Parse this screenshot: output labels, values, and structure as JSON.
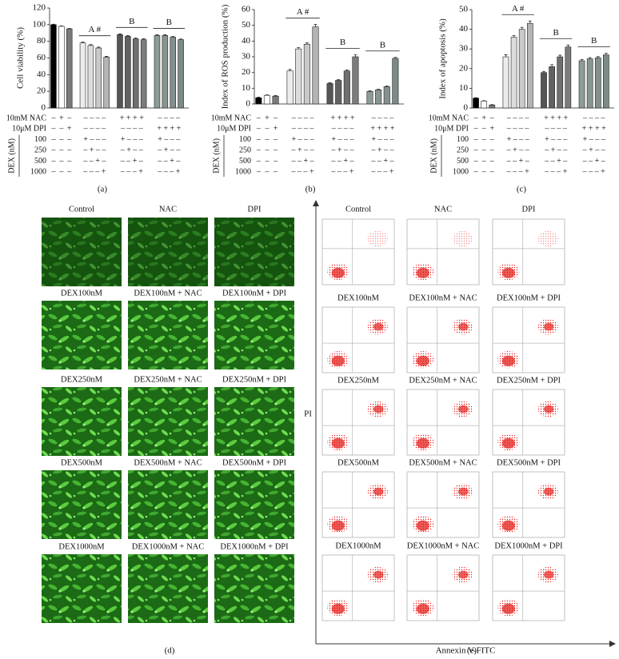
{
  "chart_data": [
    {
      "type": "bar",
      "panel": "(a)",
      "ylabel": "Cell viability (%)",
      "ylim": [
        0,
        120
      ],
      "yticks": [
        0,
        20,
        40,
        60,
        80,
        100,
        120
      ],
      "values": [
        100,
        98,
        95,
        78,
        75,
        72,
        61,
        88,
        86,
        83,
        82,
        87,
        87,
        85,
        82
      ],
      "errors": [
        0.5,
        0.5,
        0.5,
        1,
        1,
        1,
        1,
        1,
        1,
        1,
        1,
        0.8,
        0.8,
        0.8,
        0.8
      ],
      "colors": [
        "#000000",
        "#ffffff",
        "#7a7a7a",
        "#ececec",
        "#dcdcdc",
        "#c9c9c9",
        "#b4b4b4",
        "#555555",
        "#626262",
        "#6f6f6f",
        "#7c7c7c",
        "#8d9b99",
        "#88968f",
        "#82908e",
        "#7c8a88"
      ],
      "annotations": [
        "A #",
        "B",
        "B"
      ],
      "condition_group_label": "DEX (nM)",
      "conditions": [
        {
          "label": "10mM NAC",
          "marks": [
            "–",
            "+",
            "–",
            "– – – –",
            "+ + + +",
            "– – – –"
          ]
        },
        {
          "label": "10μM DPI",
          "marks": [
            "–",
            "–",
            "+",
            "– – – –",
            "– – – –",
            "+ + + +"
          ]
        },
        {
          "label": "100",
          "marks": [
            "–",
            "–",
            "–",
            "+ – – –",
            "+ – – –",
            "+ – – –"
          ]
        },
        {
          "label": "250",
          "marks": [
            "–",
            "–",
            "–",
            "– + – –",
            "– + – –",
            "– + – –"
          ]
        },
        {
          "label": "500",
          "marks": [
            "–",
            "–",
            "–",
            "– – + –",
            "– – + –",
            "– – + –"
          ]
        },
        {
          "label": "1000",
          "marks": [
            "–",
            "–",
            "–",
            "– – – +",
            "– – – +",
            "– – – +"
          ]
        }
      ]
    },
    {
      "type": "bar",
      "panel": "(b)",
      "ylabel": "Index of ROS production (%)",
      "ylim": [
        0,
        60
      ],
      "yticks": [
        0,
        10,
        20,
        30,
        40,
        50,
        60
      ],
      "values": [
        4,
        5.5,
        5,
        21,
        35,
        38,
        49,
        13,
        15,
        21,
        30,
        8,
        9,
        11,
        29
      ],
      "errors": [
        0.3,
        0.3,
        0.3,
        1,
        0.8,
        0.8,
        1.5,
        0.5,
        0.5,
        0.6,
        1.2,
        0.4,
        0.4,
        0.5,
        0.6
      ],
      "colors": [
        "#000000",
        "#ffffff",
        "#7a7a7a",
        "#ececec",
        "#dcdcdc",
        "#c9c9c9",
        "#b4b4b4",
        "#555555",
        "#626262",
        "#6f6f6f",
        "#7c7c7c",
        "#8d9b99",
        "#88968f",
        "#82908e",
        "#7c8a88"
      ],
      "annotations": [
        "A #",
        "B",
        "B"
      ],
      "condition_group_label": "DEX (nM)",
      "conditions": [
        {
          "label": "10mM NAC",
          "marks": [
            "–",
            "+",
            "–",
            "– – – –",
            "+ + + +",
            "– – – –"
          ]
        },
        {
          "label": "10μM DPI",
          "marks": [
            "–",
            "–",
            "+",
            "– – – –",
            "– – – –",
            "+ + + +"
          ]
        },
        {
          "label": "100",
          "marks": [
            "–",
            "–",
            "–",
            "+ – – –",
            "+ – – –",
            "+ – – –"
          ]
        },
        {
          "label": "250",
          "marks": [
            "–",
            "–",
            "–",
            "– + – –",
            "– + – –",
            "– + – –"
          ]
        },
        {
          "label": "500",
          "marks": [
            "–",
            "–",
            "–",
            "– – + –",
            "– – + –",
            "– – + –"
          ]
        },
        {
          "label": "1000",
          "marks": [
            "–",
            "–",
            "–",
            "– – – +",
            "– – – +",
            "– – – +"
          ]
        }
      ]
    },
    {
      "type": "bar",
      "panel": "(c)",
      "ylabel": "Index of apoptosis (%)",
      "ylim": [
        0,
        50
      ],
      "yticks": [
        0,
        10,
        20,
        30,
        40,
        50
      ],
      "values": [
        5,
        3.5,
        1.5,
        26,
        36,
        40,
        43,
        18,
        21,
        26,
        31,
        24,
        25,
        25.5,
        27
      ],
      "errors": [
        0.2,
        0.2,
        0.2,
        1,
        0.8,
        1,
        1.2,
        0.6,
        1,
        0.8,
        1,
        0.6,
        0.6,
        0.6,
        0.8
      ],
      "colors": [
        "#000000",
        "#ffffff",
        "#7a7a7a",
        "#ececec",
        "#dcdcdc",
        "#c9c9c9",
        "#b4b4b4",
        "#555555",
        "#626262",
        "#6f6f6f",
        "#7c7c7c",
        "#8d9b99",
        "#88968f",
        "#82908e",
        "#7c8a88"
      ],
      "annotations": [
        "A #",
        "B",
        "B"
      ],
      "condition_group_label": "DEX (nM)",
      "conditions": [
        {
          "label": "10mM NAC",
          "marks": [
            "–",
            "+",
            "–",
            "– – – –",
            "+ + + +",
            "– – – –"
          ]
        },
        {
          "label": "10μM DPI",
          "marks": [
            "–",
            "–",
            "+",
            "– – – –",
            "– – – –",
            "+ + + +"
          ]
        },
        {
          "label": "100",
          "marks": [
            "–",
            "–",
            "–",
            "+ – – –",
            "+ – – –",
            "+ – – –"
          ]
        },
        {
          "label": "250",
          "marks": [
            "–",
            "–",
            "–",
            "– + – –",
            "– + – –",
            "– + – –"
          ]
        },
        {
          "label": "500",
          "marks": [
            "–",
            "–",
            "–",
            "– – + –",
            "– – + –",
            "– – + –"
          ]
        },
        {
          "label": "1000",
          "marks": [
            "–",
            "–",
            "–",
            "– – – +",
            "– – – +",
            "– – – +"
          ]
        }
      ]
    }
  ],
  "panel_d": {
    "label": "(d)",
    "captions": [
      "Control",
      "NAC",
      "DPI",
      "DEX100nM",
      "DEX100nM + NAC",
      "DEX100nM + DPI",
      "DEX250nM",
      "DEX250nM + NAC",
      "DEX250nM + DPI",
      "DEX500nM",
      "DEX500nM + NAC",
      "DEX500nM + DPI",
      "DEX1000nM",
      "DEX1000nM + NAC",
      "DEX1000nM + DPI"
    ]
  },
  "panel_e": {
    "label": "(e)",
    "y_label": "PI",
    "x_label": "Annexin V-FITC",
    "captions": [
      "Control",
      "NAC",
      "DPI",
      "DEX100nM",
      "DEX100nM + NAC",
      "DEX100nM + DPI",
      "DEX250nM",
      "DEX250nM + NAC",
      "DEX250nM + DPI",
      "DEX500nM",
      "DEX500nM + NAC",
      "DEX500nM + DPI",
      "DEX1000nM",
      "DEX1000nM + NAC",
      "DEX1000nM + DPI"
    ]
  }
}
